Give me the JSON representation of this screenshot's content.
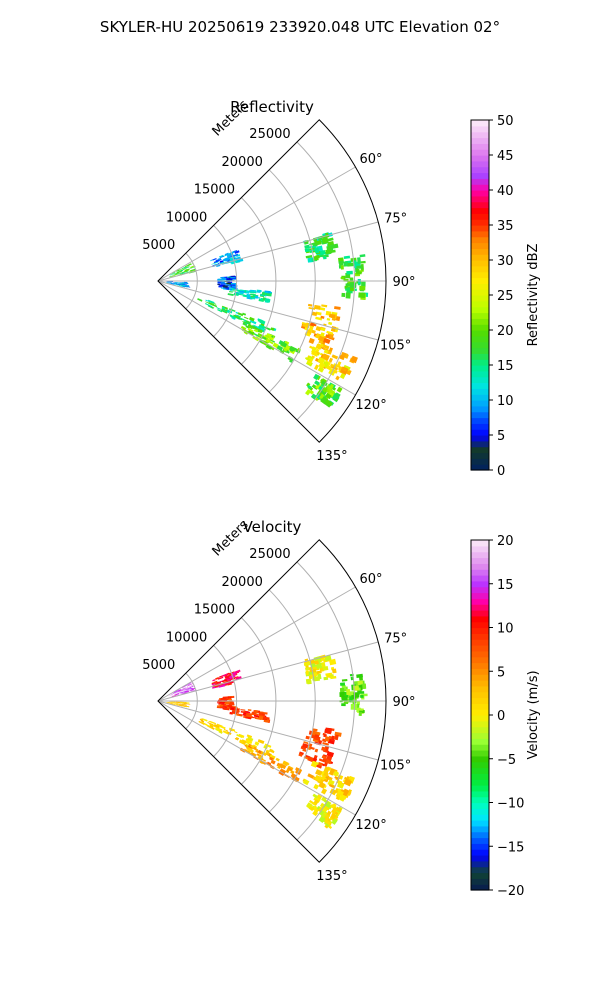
{
  "figure": {
    "suptitle": "SKYLER-HU  20250619  233920.048 UTC Elevation 02°"
  },
  "chart_data": [
    {
      "type": "polar-sector",
      "title": "Reflectivity",
      "range_axis_label": "Meters",
      "range_ticks": [
        "5000",
        "10000",
        "15000",
        "20000",
        "25000"
      ],
      "range_values": [
        5000,
        10000,
        15000,
        20000,
        25000
      ],
      "range_max": 29000,
      "azimuth_range": [
        45,
        135
      ],
      "azimuth_ticks": [
        "60°",
        "75°",
        "90°",
        "105°",
        "120°",
        "135°"
      ],
      "azimuth_values": [
        60,
        75,
        90,
        105,
        120,
        135
      ],
      "grid": true,
      "colorbar": {
        "label": "Reflectivity dBZ",
        "min": 0,
        "max": 50,
        "ticks": [
          "0",
          "5",
          "10",
          "15",
          "20",
          "25",
          "30",
          "35",
          "40",
          "45",
          "50"
        ]
      },
      "echoes": [
        {
          "range": [
            1500,
            4500
          ],
          "azimuth": [
            60,
            75
          ],
          "value": 18
        },
        {
          "range": [
            1000,
            3500
          ],
          "azimuth": [
            92,
            102
          ],
          "value": 10
        },
        {
          "range": [
            7000,
            10500
          ],
          "azimuth": [
            68,
            76
          ],
          "value": 9
        },
        {
          "range": [
            7500,
            9500
          ],
          "azimuth": [
            86,
            96
          ],
          "value": 7
        },
        {
          "range": [
            9000,
            14000
          ],
          "azimuth": [
            95,
            100
          ],
          "value": 13
        },
        {
          "range": [
            5500,
            16000
          ],
          "azimuth": [
            110,
            116
          ],
          "value": 16
        },
        {
          "range": [
            12000,
            20000
          ],
          "azimuth": [
            115,
            120
          ],
          "value": 20
        },
        {
          "range": [
            19000,
            23000
          ],
          "azimuth": [
            98,
            112
          ],
          "value": 30
        },
        {
          "range": [
            21000,
            27000
          ],
          "azimuth": [
            111,
            118
          ],
          "value": 28
        },
        {
          "range": [
            23000,
            26000
          ],
          "azimuth": [
            82,
            94
          ],
          "value": 18
        },
        {
          "range": [
            19000,
            22500
          ],
          "azimuth": [
            74,
            82
          ],
          "value": 16
        },
        {
          "range": [
            23000,
            27000
          ],
          "azimuth": [
            120,
            126
          ],
          "value": 19
        }
      ]
    },
    {
      "type": "polar-sector",
      "title": "Velocity",
      "range_axis_label": "Meters",
      "range_ticks": [
        "5000",
        "10000",
        "15000",
        "20000",
        "25000"
      ],
      "range_values": [
        5000,
        10000,
        15000,
        20000,
        25000
      ],
      "range_max": 29000,
      "azimuth_range": [
        45,
        135
      ],
      "azimuth_ticks": [
        "60°",
        "75°",
        "90°",
        "105°",
        "120°",
        "135°"
      ],
      "azimuth_values": [
        60,
        75,
        90,
        105,
        120,
        135
      ],
      "grid": true,
      "colorbar": {
        "label": "Velocity (m/s)",
        "min": -20,
        "max": 20,
        "ticks": [
          "−20",
          "−15",
          "−10",
          "−5",
          "0",
          "5",
          "10",
          "15",
          "20"
        ]
      },
      "echoes": [
        {
          "range": [
            1500,
            4500
          ],
          "azimuth": [
            60,
            75
          ],
          "value": 16
        },
        {
          "range": [
            1000,
            3500
          ],
          "azimuth": [
            92,
            102
          ],
          "value": 2
        },
        {
          "range": [
            7000,
            10500
          ],
          "azimuth": [
            68,
            76
          ],
          "value": 11
        },
        {
          "range": [
            7500,
            9500
          ],
          "azimuth": [
            86,
            96
          ],
          "value": 9
        },
        {
          "range": [
            9000,
            14000
          ],
          "azimuth": [
            95,
            100
          ],
          "value": 9
        },
        {
          "range": [
            5500,
            16000
          ],
          "azimuth": [
            110,
            116
          ],
          "value": 1
        },
        {
          "range": [
            12000,
            20000
          ],
          "azimuth": [
            115,
            120
          ],
          "value": 4
        },
        {
          "range": [
            19000,
            23000
          ],
          "azimuth": [
            98,
            112
          ],
          "value": 8
        },
        {
          "range": [
            21000,
            27000
          ],
          "azimuth": [
            111,
            118
          ],
          "value": 2
        },
        {
          "range": [
            23000,
            26000
          ],
          "azimuth": [
            82,
            94
          ],
          "value": -4
        },
        {
          "range": [
            19000,
            22500
          ],
          "azimuth": [
            74,
            82
          ],
          "value": 0
        },
        {
          "range": [
            23000,
            27000
          ],
          "azimuth": [
            120,
            126
          ],
          "value": 0
        }
      ]
    }
  ]
}
